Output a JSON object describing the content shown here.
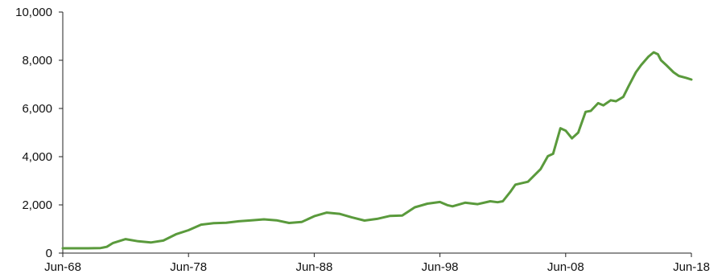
{
  "chart_data": {
    "type": "line",
    "title": "",
    "xlabel": "",
    "ylabel": "",
    "ylim": [
      0,
      10000
    ],
    "xlim": [
      "1968-06",
      "2018-06"
    ],
    "grid": false,
    "legend": "none",
    "y_ticks": [
      "0",
      "2,000",
      "4,000",
      "6,000",
      "8,000",
      "10,000"
    ],
    "y_tick_values": [
      0,
      2000,
      4000,
      6000,
      8000,
      10000
    ],
    "x_ticks": [
      "Jun-68",
      "Jun-78",
      "Jun-88",
      "Jun-98",
      "Jun-08",
      "Jun-18"
    ],
    "x_tick_values": [
      "1968-06",
      "1978-06",
      "1988-06",
      "1998-06",
      "2008-06",
      "2018-06"
    ],
    "series": [
      {
        "color": "#5a9a3c",
        "x": [
          "1968-06",
          "1970-06",
          "1971-06",
          "1971-12",
          "1972-06",
          "1973-06",
          "1974-06",
          "1975-06",
          "1976-06",
          "1977-06",
          "1978-06",
          "1979-06",
          "1980-06",
          "1981-06",
          "1982-06",
          "1983-06",
          "1984-06",
          "1985-06",
          "1986-06",
          "1987-06",
          "1988-06",
          "1989-06",
          "1990-06",
          "1991-06",
          "1992-06",
          "1993-06",
          "1994-06",
          "1995-06",
          "1996-06",
          "1997-06",
          "1998-06",
          "1999-01",
          "1999-06",
          "2000-06",
          "2001-06",
          "2002-06",
          "2003-01",
          "2003-06",
          "2004-01",
          "2004-06",
          "2005-06",
          "2006-06",
          "2007-01",
          "2007-06",
          "2008-01",
          "2008-06",
          "2008-12",
          "2009-06",
          "2010-01",
          "2010-06",
          "2011-01",
          "2011-06",
          "2012-01",
          "2012-06",
          "2013-01",
          "2013-06",
          "2014-01",
          "2014-06",
          "2015-01",
          "2015-06",
          "2015-10",
          "2016-01",
          "2016-06",
          "2017-01",
          "2017-06",
          "2018-01",
          "2018-06"
        ],
        "values": [
          200,
          200,
          210,
          260,
          420,
          580,
          490,
          440,
          520,
          780,
          950,
          1180,
          1240,
          1260,
          1320,
          1360,
          1400,
          1360,
          1250,
          1290,
          1530,
          1680,
          1630,
          1480,
          1350,
          1420,
          1540,
          1560,
          1900,
          2050,
          2120,
          1990,
          1940,
          2090,
          2030,
          2150,
          2110,
          2150,
          2530,
          2840,
          2960,
          3480,
          4020,
          4120,
          5180,
          5080,
          4760,
          5000,
          5860,
          5900,
          6220,
          6130,
          6340,
          6300,
          6480,
          6920,
          7500,
          7800,
          8150,
          8330,
          8250,
          8000,
          7800,
          7500,
          7350,
          7270,
          7200
        ]
      }
    ]
  }
}
